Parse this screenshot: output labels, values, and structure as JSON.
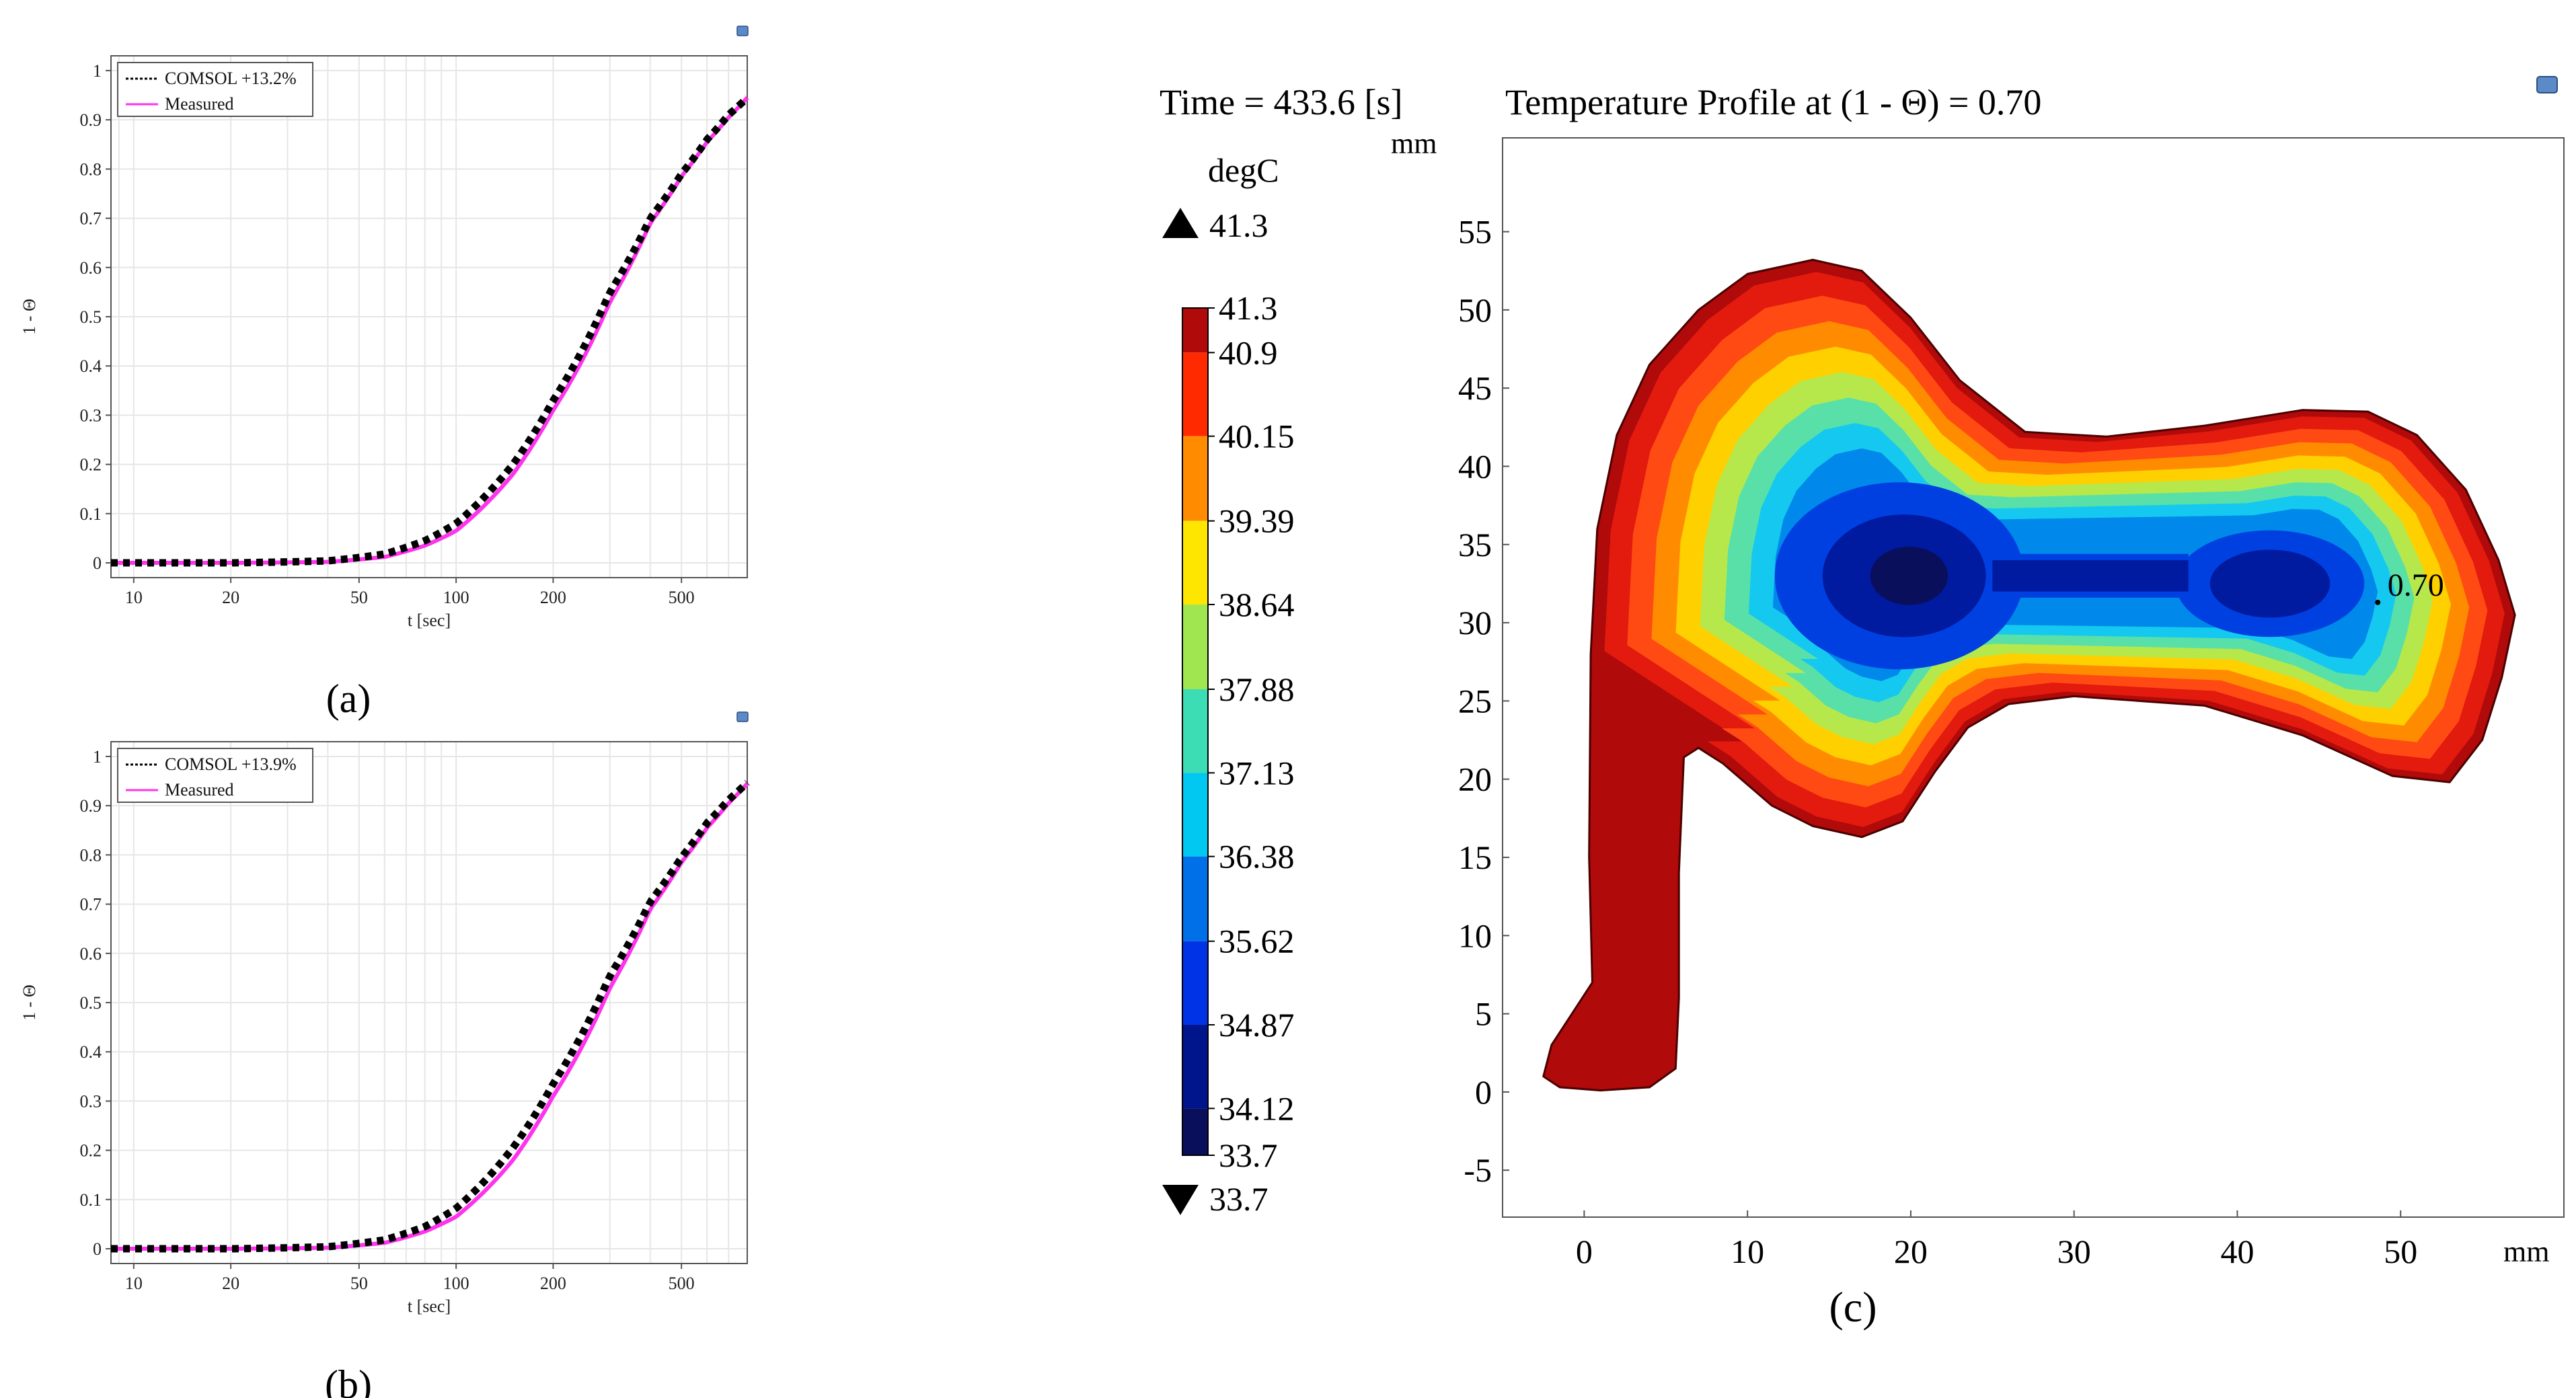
{
  "chart_data": [
    {
      "id": "a",
      "type": "line",
      "panel_label": "(a)",
      "xscale": "log",
      "xlim": [
        8.5,
        800
      ],
      "ylim": [
        -0.03,
        1.03
      ],
      "xticks": [
        10,
        20,
        50,
        100,
        200,
        500
      ],
      "xtick_labels": [
        "10",
        "20",
        "50",
        "100",
        "200",
        "500"
      ],
      "yticks": [
        0,
        0.1,
        0.2,
        0.3,
        0.4,
        0.5,
        0.6,
        0.7,
        0.8,
        0.9,
        1
      ],
      "ytick_labels": [
        "0",
        "0.1",
        "0.2",
        "0.3",
        "0.4",
        "0.5",
        "0.6",
        "0.7",
        "0.8",
        "0.9",
        "1"
      ],
      "xlabel": "t [sec]",
      "ylabel": "1 - Θ",
      "legend": [
        "COMSOL +13.2%",
        "Measured"
      ],
      "legend_position": "top-left",
      "grid": true,
      "series": [
        {
          "name": "COMSOL +13.2%",
          "style": "dotted",
          "color": "#000000",
          "x": [
            8.5,
            20,
            40,
            60,
            80,
            100,
            150,
            200,
            300,
            400,
            500,
            600,
            700,
            800
          ],
          "y": [
            0.0,
            0.0,
            0.004,
            0.018,
            0.045,
            0.08,
            0.2,
            0.33,
            0.55,
            0.7,
            0.79,
            0.86,
            0.91,
            0.945
          ]
        },
        {
          "name": "Measured",
          "style": "solid",
          "color": "#ff33ee",
          "x": [
            8.5,
            20,
            40,
            60,
            80,
            100,
            150,
            200,
            300,
            400,
            500,
            600,
            700,
            800
          ],
          "y": [
            0.0,
            0.0,
            0.002,
            0.012,
            0.035,
            0.065,
            0.18,
            0.31,
            0.53,
            0.69,
            0.785,
            0.855,
            0.905,
            0.945
          ]
        }
      ]
    },
    {
      "id": "b",
      "type": "line",
      "panel_label": "(b)",
      "xscale": "log",
      "xlim": [
        8.5,
        800
      ],
      "ylim": [
        -0.03,
        1.03
      ],
      "xticks": [
        10,
        20,
        50,
        100,
        200,
        500
      ],
      "xtick_labels": [
        "10",
        "20",
        "50",
        "100",
        "200",
        "500"
      ],
      "yticks": [
        0,
        0.1,
        0.2,
        0.3,
        0.4,
        0.5,
        0.6,
        0.7,
        0.8,
        0.9,
        1
      ],
      "ytick_labels": [
        "0",
        "0.1",
        "0.2",
        "0.3",
        "0.4",
        "0.5",
        "0.6",
        "0.7",
        "0.8",
        "0.9",
        "1"
      ],
      "xlabel": "t [sec]",
      "ylabel": "1 - Θ",
      "legend": [
        "COMSOL +13.9%",
        "Measured"
      ],
      "legend_position": "top-left",
      "grid": true,
      "series": [
        {
          "name": "COMSOL +13.9%",
          "style": "dotted",
          "color": "#000000",
          "x": [
            8.5,
            20,
            40,
            60,
            80,
            100,
            150,
            200,
            300,
            400,
            500,
            600,
            700,
            800
          ],
          "y": [
            0.0,
            0.0,
            0.004,
            0.018,
            0.045,
            0.082,
            0.205,
            0.335,
            0.555,
            0.705,
            0.795,
            0.865,
            0.912,
            0.947
          ]
        },
        {
          "name": "Measured",
          "style": "solid",
          "color": "#ff33ee",
          "x": [
            8.5,
            20,
            40,
            60,
            80,
            100,
            150,
            200,
            300,
            400,
            500,
            600,
            700,
            800
          ],
          "y": [
            0.0,
            0.0,
            0.002,
            0.012,
            0.035,
            0.065,
            0.18,
            0.31,
            0.53,
            0.69,
            0.785,
            0.855,
            0.905,
            0.945
          ]
        }
      ]
    },
    {
      "id": "c",
      "type": "heatmap",
      "panel_label": "(c)",
      "title": "Temperature Profile at (1 - Θ) = 0.70",
      "time_label": "Time = 433.6 [s]",
      "xlabel": "mm",
      "ylabel": "mm",
      "xlim": [
        -5,
        60
      ],
      "ylim": [
        -8,
        61
      ],
      "xticks": [
        0,
        10,
        20,
        30,
        40,
        50
      ],
      "xtick_labels": [
        "0",
        "10",
        "20",
        "30",
        "40",
        "50"
      ],
      "yticks": [
        -5,
        0,
        5,
        10,
        15,
        20,
        25,
        30,
        35,
        40,
        45,
        50,
        55
      ],
      "ytick_labels": [
        "-5",
        "0",
        "5",
        "10",
        "15",
        "20",
        "25",
        "30",
        "35",
        "40",
        "45",
        "50",
        "55"
      ],
      "annotation": {
        "text": "0.70",
        "x": 49.5,
        "y": 32.5
      },
      "colorbar": {
        "unit": "degC",
        "max_label": "41.3",
        "min_label": "33.7",
        "tick_labels": [
          "41.3",
          "40.9",
          "40.15",
          "39.39",
          "38.64",
          "37.88",
          "37.13",
          "36.38",
          "35.62",
          "34.87",
          "34.12",
          "33.7"
        ],
        "tick_values": [
          41.3,
          40.9,
          40.15,
          39.39,
          38.64,
          37.88,
          37.13,
          36.38,
          35.62,
          34.87,
          34.12,
          33.7
        ],
        "min": 33.7,
        "max": 41.3,
        "colors": [
          "#0a0f5c",
          "#00148c",
          "#0033e6",
          "#0070e8",
          "#00c8f0",
          "#3cdcb4",
          "#a0e650",
          "#ffe600",
          "#ff8c00",
          "#ff2a00",
          "#b00a0a"
        ]
      },
      "contour_colors": [
        "#b00a0a",
        "#e31a0e",
        "#ff4a14",
        "#ff8c00",
        "#ffd000",
        "#b6e84c",
        "#58e0a8",
        "#14c8f0",
        "#0088ea",
        "#0040e0",
        "#001aa0",
        "#0a0f5c"
      ]
    }
  ]
}
